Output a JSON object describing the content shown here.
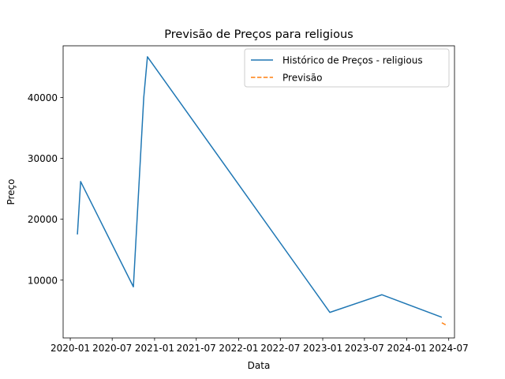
{
  "chart_data": {
    "type": "line",
    "title": "Previsão de Preços para religious",
    "xlabel": "Data",
    "ylabel": "Preço",
    "x_ticks": [
      "2020-01",
      "2020-07",
      "2021-01",
      "2021-07",
      "2022-01",
      "2022-07",
      "2023-01",
      "2023-07",
      "2024-01",
      "2024-07"
    ],
    "y_ticks": [
      10000,
      20000,
      30000,
      40000
    ],
    "y_tick_labels": [
      "10000",
      "20000",
      "30000",
      "40000"
    ],
    "xlim": [
      "2019-12-01",
      "2024-07-26"
    ],
    "ylim": [
      500,
      48500
    ],
    "legend_position": "top-right",
    "series": [
      {
        "name": "Histórico de Preços - religious",
        "color": "#1f77b4",
        "style": "solid",
        "x": [
          "2020-02-01",
          "2020-02-15",
          "2020-10-01",
          "2020-11-15",
          "2020-12-01",
          "2023-02-01",
          "2023-09-15",
          "2024-06-01"
        ],
        "y": [
          17500,
          26200,
          8900,
          40000,
          46700,
          4700,
          7600,
          3900
        ]
      },
      {
        "name": "Previsão",
        "color": "#ff7f0e",
        "style": "dashed",
        "x": [
          "2024-06-01",
          "2024-06-25"
        ],
        "y": [
          3000,
          2500
        ]
      }
    ]
  }
}
